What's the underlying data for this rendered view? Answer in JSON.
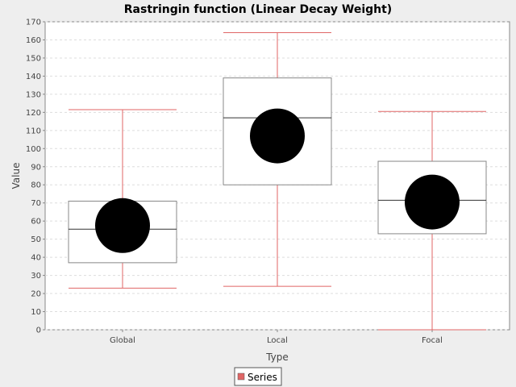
{
  "chart_data": {
    "type": "box",
    "title": "Rastringin function (Linear Decay Weight)",
    "xlabel": "Type",
    "ylabel": "Value",
    "ylim": [
      0,
      170
    ],
    "yticks": [
      0,
      10,
      20,
      30,
      40,
      50,
      60,
      70,
      80,
      90,
      100,
      110,
      120,
      130,
      140,
      150,
      160,
      170
    ],
    "grid": true,
    "legend": {
      "position": "bottom",
      "entries": [
        {
          "name": "Series",
          "color": "#e06666"
        }
      ]
    },
    "categories": [
      "Global",
      "Local",
      "Focal"
    ],
    "boxes": [
      {
        "category": "Global",
        "min": 23,
        "q1": 37,
        "median": 55.5,
        "q3": 71,
        "max": 121.5,
        "mean": 57.5
      },
      {
        "category": "Local",
        "min": 24,
        "q1": 80,
        "median": 117,
        "q3": 139,
        "max": 164,
        "mean": 107
      },
      {
        "category": "Focal",
        "min": 0,
        "q1": 53,
        "median": 71.5,
        "q3": 93,
        "max": 120.5,
        "mean": 70.5
      }
    ],
    "colors": {
      "whisker": "#e06666",
      "box": "#888888",
      "median": "#333333",
      "mean": "#000000",
      "grid": "#dddddd"
    }
  }
}
